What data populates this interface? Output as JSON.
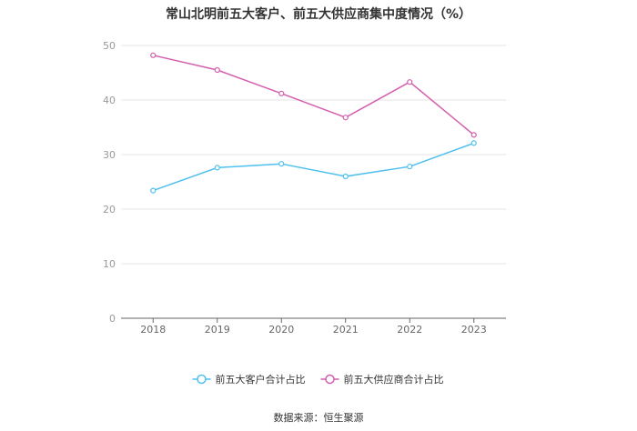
{
  "chart_data": {
    "type": "line",
    "title": "常山北明前五大客户、前五大供应商集中度情况（%）",
    "x": [
      "2018",
      "2019",
      "2020",
      "2021",
      "2022",
      "2023"
    ],
    "series": [
      {
        "name": "前五大客户合计占比",
        "color": "#4fc0ee",
        "values": [
          23.4,
          27.6,
          28.3,
          26.0,
          27.8,
          32.1
        ]
      },
      {
        "name": "前五大供应商合计占比",
        "color": "#d45fae",
        "values": [
          48.2,
          45.5,
          41.2,
          36.8,
          43.3,
          33.6
        ]
      }
    ],
    "ylim": [
      0,
      50
    ],
    "yticks": [
      0,
      10,
      20,
      30,
      40,
      50
    ],
    "grid": true,
    "legend": "bottom"
  },
  "source": "数据来源：恒生聚源"
}
